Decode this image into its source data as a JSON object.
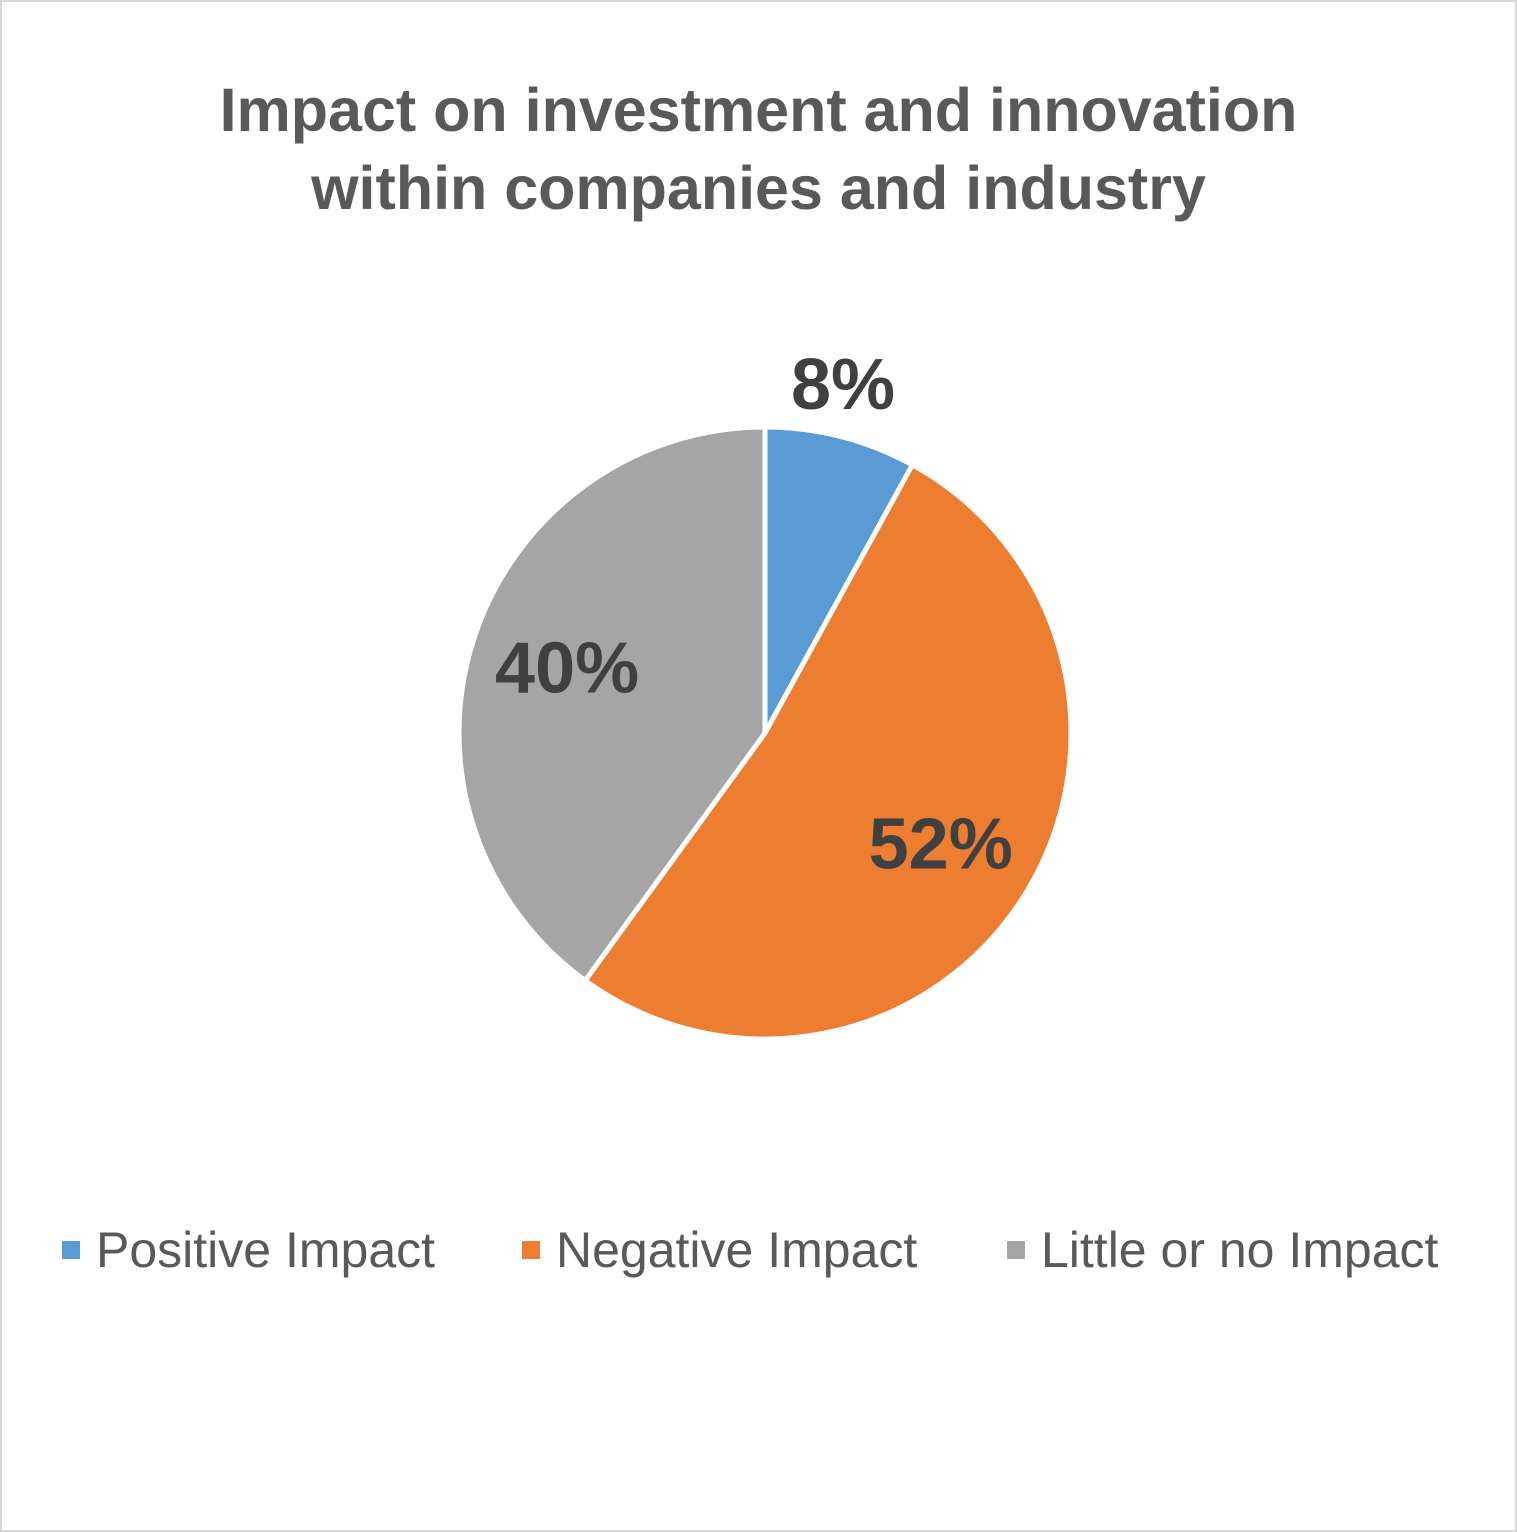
{
  "chart_data": {
    "type": "pie",
    "title_lines": [
      "Impact on investment and innovation",
      "within companies and industry"
    ],
    "slices": [
      {
        "label": "Positive Impact",
        "value": 8,
        "display": "8%",
        "color": "#5b9bd5"
      },
      {
        "label": "Negative Impact",
        "value": 52,
        "display": "52%",
        "color": "#ed7d31"
      },
      {
        "label": "Little or no Impact",
        "value": 40,
        "display": "40%",
        "color": "#a5a5a5"
      }
    ],
    "legend_position": "bottom"
  }
}
